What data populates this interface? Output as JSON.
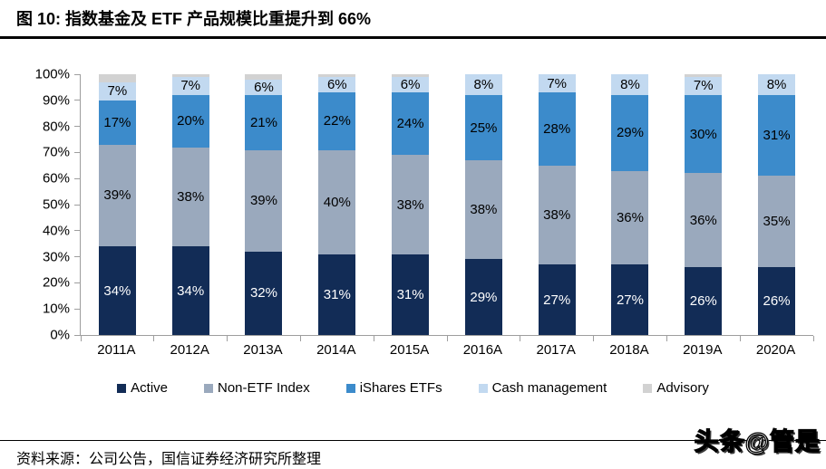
{
  "figure": {
    "title": "图 10: 指数基金及 ETF 产品规模比重提升到 66%",
    "source_label": "资料来源：公司公告，国信证券经济研究所整理",
    "watermark": "头条@管是"
  },
  "chart_data": {
    "type": "bar",
    "stacked": true,
    "stack_unit": "percent",
    "title": "图 10: 指数基金及 ETF 产品规模比重提升到 66%",
    "xlabel": "",
    "ylabel": "",
    "ylim": [
      0,
      100
    ],
    "grid": false,
    "legend_position": "bottom",
    "axis_color": "#9e9e9e",
    "categories": [
      "2011A",
      "2012A",
      "2013A",
      "2014A",
      "2015A",
      "2016A",
      "2017A",
      "2018A",
      "2019A",
      "2020A"
    ],
    "yticks": [
      "100%",
      "90%",
      "80%",
      "70%",
      "60%",
      "50%",
      "40%",
      "30%",
      "20%",
      "10%",
      "0%"
    ],
    "series": [
      {
        "name": "Active",
        "color": "#122c56",
        "label_color": "#ffffff",
        "show_labels": true,
        "values": [
          34,
          34,
          32,
          31,
          31,
          29,
          27,
          27,
          26,
          26
        ]
      },
      {
        "name": "Non-ETF Index",
        "color": "#9aa9bd",
        "label_color": "#000000",
        "show_labels": true,
        "values": [
          39,
          38,
          39,
          40,
          38,
          38,
          38,
          36,
          36,
          35
        ]
      },
      {
        "name": "iShares ETFs",
        "color": "#3c8bcb",
        "label_color": "#000000",
        "show_labels": true,
        "values": [
          17,
          20,
          21,
          22,
          24,
          25,
          28,
          29,
          30,
          31
        ]
      },
      {
        "name": "Cash management",
        "color": "#c2d9f0",
        "label_color": "#000000",
        "show_labels": true,
        "values": [
          7,
          7,
          6,
          6,
          6,
          8,
          7,
          8,
          7,
          8
        ]
      },
      {
        "name": "Advisory",
        "color": "#d2d2d2",
        "label_color": "#000000",
        "show_labels": false,
        "values": [
          3,
          1,
          2,
          1,
          1,
          0,
          0,
          0,
          1,
          0
        ]
      }
    ]
  }
}
